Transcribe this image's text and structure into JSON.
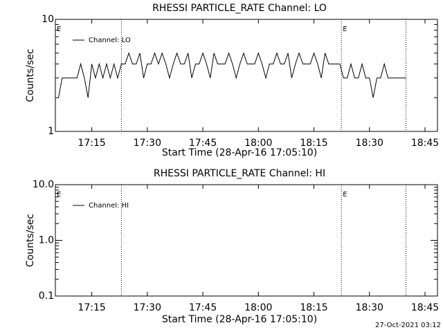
{
  "chart_data": [
    {
      "type": "line",
      "title": "RHESSI PARTICLE_RATE Channel: LO",
      "xlabel": "Start Time (28-Apr-16 17:05:10)",
      "ylabel": "Counts/sec",
      "log_y": true,
      "legend": "upper left",
      "xlim": [
        "17:05:10",
        "18:48:22"
      ],
      "xticks": [
        "17:15",
        "17:30",
        "17:45",
        "18:00",
        "18:15",
        "18:30",
        "18:45"
      ],
      "ylim": [
        1,
        10
      ],
      "yticks": [
        1,
        10
      ],
      "vlines": [
        "17:23:00",
        "18:22:25",
        "18:39:50"
      ],
      "annotations": [
        {
          "text": "E",
          "x": "17:05:10"
        },
        {
          "text": "E",
          "x": "18:22:25"
        }
      ],
      "series": [
        {
          "name": "Channel: LO",
          "color": "#000000",
          "x": [
            "17:06",
            "17:07",
            "17:08",
            "17:09",
            "17:10",
            "17:11",
            "17:12",
            "17:13",
            "17:14",
            "17:15",
            "17:16",
            "17:17",
            "17:18",
            "17:19",
            "17:20",
            "17:21",
            "17:22",
            "17:23",
            "17:24",
            "17:25",
            "17:26",
            "17:27",
            "17:28",
            "17:29",
            "17:30",
            "17:31",
            "17:32",
            "17:33",
            "17:34",
            "17:35",
            "17:36",
            "17:37",
            "17:38",
            "17:39",
            "17:40",
            "17:41",
            "17:42",
            "17:43",
            "17:44",
            "17:45",
            "17:46",
            "17:47",
            "17:48",
            "17:49",
            "17:50",
            "17:51",
            "17:52",
            "17:53",
            "17:54",
            "17:55",
            "17:56",
            "17:57",
            "17:58",
            "17:59",
            "18:00",
            "18:01",
            "18:02",
            "18:03",
            "18:04",
            "18:05",
            "18:06",
            "18:07",
            "18:08",
            "18:09",
            "18:10",
            "18:11",
            "18:12",
            "18:13",
            "18:14",
            "18:15",
            "18:16",
            "18:17",
            "18:18",
            "18:19",
            "18:20",
            "18:21",
            "18:22",
            "18:23",
            "18:24",
            "18:25",
            "18:26",
            "18:27",
            "18:28",
            "18:29",
            "18:30",
            "18:31",
            "18:32",
            "18:33",
            "18:34",
            "18:35",
            "18:36",
            "18:37",
            "18:38",
            "18:39",
            "18:40"
          ],
          "values": [
            2,
            3,
            3,
            3,
            3,
            3,
            4,
            3,
            2,
            4,
            3,
            4,
            3,
            4,
            3,
            4,
            3,
            4,
            4,
            5,
            4,
            4,
            5,
            3,
            4,
            4,
            5,
            4,
            5,
            4,
            3,
            4,
            5,
            4,
            4,
            5,
            3,
            4,
            4,
            5,
            4,
            3,
            5,
            4,
            4,
            4,
            5,
            4,
            3,
            4,
            5,
            4,
            4,
            4,
            5,
            4,
            3,
            4,
            4,
            5,
            4,
            4,
            5,
            3,
            4,
            5,
            4,
            4,
            4,
            5,
            4,
            3,
            5,
            4,
            4,
            4,
            4,
            3,
            3,
            4,
            3,
            3,
            4,
            3,
            3,
            2,
            3,
            3,
            4,
            3,
            3,
            3,
            3,
            3,
            3
          ]
        }
      ]
    },
    {
      "type": "line",
      "title": "RHESSI PARTICLE_RATE Channel: HI",
      "xlabel": "Start Time (28-Apr-16 17:05:10)",
      "ylabel": "Counts/sec",
      "log_y": true,
      "legend": "upper left",
      "xlim": [
        "17:05:10",
        "18:48:22"
      ],
      "xticks": [
        "17:15",
        "17:30",
        "17:45",
        "18:00",
        "18:15",
        "18:30",
        "18:45"
      ],
      "ylim": [
        0.1,
        10
      ],
      "yticks": [
        0.1,
        {
          "value": 1,
          "label": "1.0"
        },
        {
          "value": 10,
          "label": "10.0"
        }
      ],
      "vlines": [
        "17:23:00",
        "18:22:25",
        "18:39:50"
      ],
      "annotations": [
        {
          "text": "E",
          "x": "17:05:10"
        },
        {
          "text": "E",
          "x": "18:22:25"
        }
      ],
      "series": [
        {
          "name": "Channel: HI",
          "color": "#000000",
          "x": [],
          "values": []
        }
      ]
    }
  ],
  "footer": "27-Oct-2021 03:12"
}
